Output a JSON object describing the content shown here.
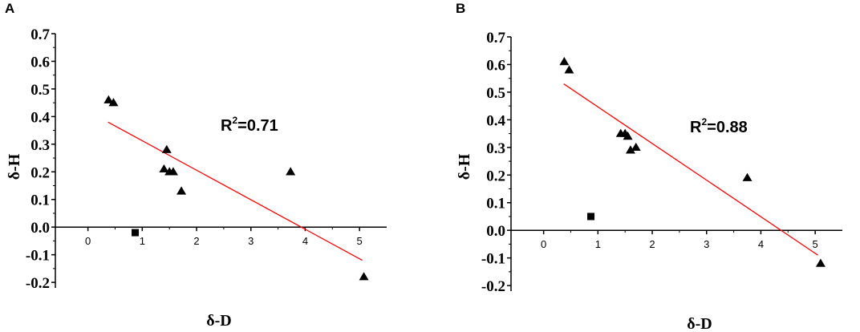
{
  "chart_data": [
    {
      "panel": "A",
      "type": "scatter",
      "xlabel": "δ-D",
      "ylabel": "δ-H",
      "xlim": [
        -0.6,
        5.5
      ],
      "ylim": [
        -0.22,
        0.7
      ],
      "x_ticks": [
        0,
        1,
        2,
        3,
        4,
        5
      ],
      "y_ticks": [
        -0.2,
        -0.1,
        0.0,
        0.1,
        0.2,
        0.3,
        0.4,
        0.5,
        0.6,
        0.7
      ],
      "y_tick_labels": [
        "-0.2",
        "-0.1",
        "0.0",
        "0.1",
        "0.2",
        "0.3",
        "0.4",
        "0.5",
        "0.6",
        "0.7"
      ],
      "annotation": {
        "prefix": "R",
        "sup": "2",
        "suffix": "=0.71"
      },
      "series": [
        {
          "marker": "triangle",
          "color": "#000000",
          "points": [
            [
              0.38,
              0.46
            ],
            [
              0.47,
              0.45
            ],
            [
              1.45,
              0.28
            ],
            [
              1.4,
              0.21
            ],
            [
              1.5,
              0.2
            ],
            [
              1.57,
              0.2
            ],
            [
              1.72,
              0.13
            ],
            [
              3.73,
              0.2
            ],
            [
              5.08,
              -0.18
            ]
          ]
        },
        {
          "marker": "square",
          "color": "#000000",
          "points": [
            [
              0.87,
              -0.02
            ]
          ]
        }
      ],
      "fit": {
        "color": "#ff0000",
        "x": [
          0.37,
          5.05
        ],
        "y": [
          0.38,
          -0.12
        ]
      }
    },
    {
      "panel": "B",
      "type": "scatter",
      "xlabel": "δ-D",
      "ylabel": "δ-H",
      "xlim": [
        -0.6,
        5.5
      ],
      "ylim": [
        -0.22,
        0.7
      ],
      "x_ticks": [
        0,
        1,
        2,
        3,
        4,
        5
      ],
      "y_ticks": [
        -0.2,
        -0.1,
        0.0,
        0.1,
        0.2,
        0.3,
        0.4,
        0.5,
        0.6,
        0.7
      ],
      "y_tick_labels": [
        "-0.2",
        "-0.1",
        "0.0",
        "0.1",
        "0.2",
        "0.3",
        "0.4",
        "0.5",
        "0.6",
        "0.7"
      ],
      "annotation": {
        "prefix": "R",
        "sup": "2",
        "suffix": "=0.88"
      },
      "series": [
        {
          "marker": "triangle",
          "color": "#000000",
          "points": [
            [
              0.38,
              0.61
            ],
            [
              0.47,
              0.58
            ],
            [
              1.42,
              0.35
            ],
            [
              1.5,
              0.35
            ],
            [
              1.55,
              0.34
            ],
            [
              1.6,
              0.29
            ],
            [
              1.7,
              0.3
            ],
            [
              3.75,
              0.19
            ],
            [
              5.1,
              -0.12
            ]
          ]
        },
        {
          "marker": "square",
          "color": "#000000",
          "points": [
            [
              0.87,
              0.05
            ]
          ]
        }
      ],
      "fit": {
        "color": "#ff0000",
        "x": [
          0.37,
          5.05
        ],
        "y": [
          0.53,
          -0.09
        ]
      }
    }
  ]
}
